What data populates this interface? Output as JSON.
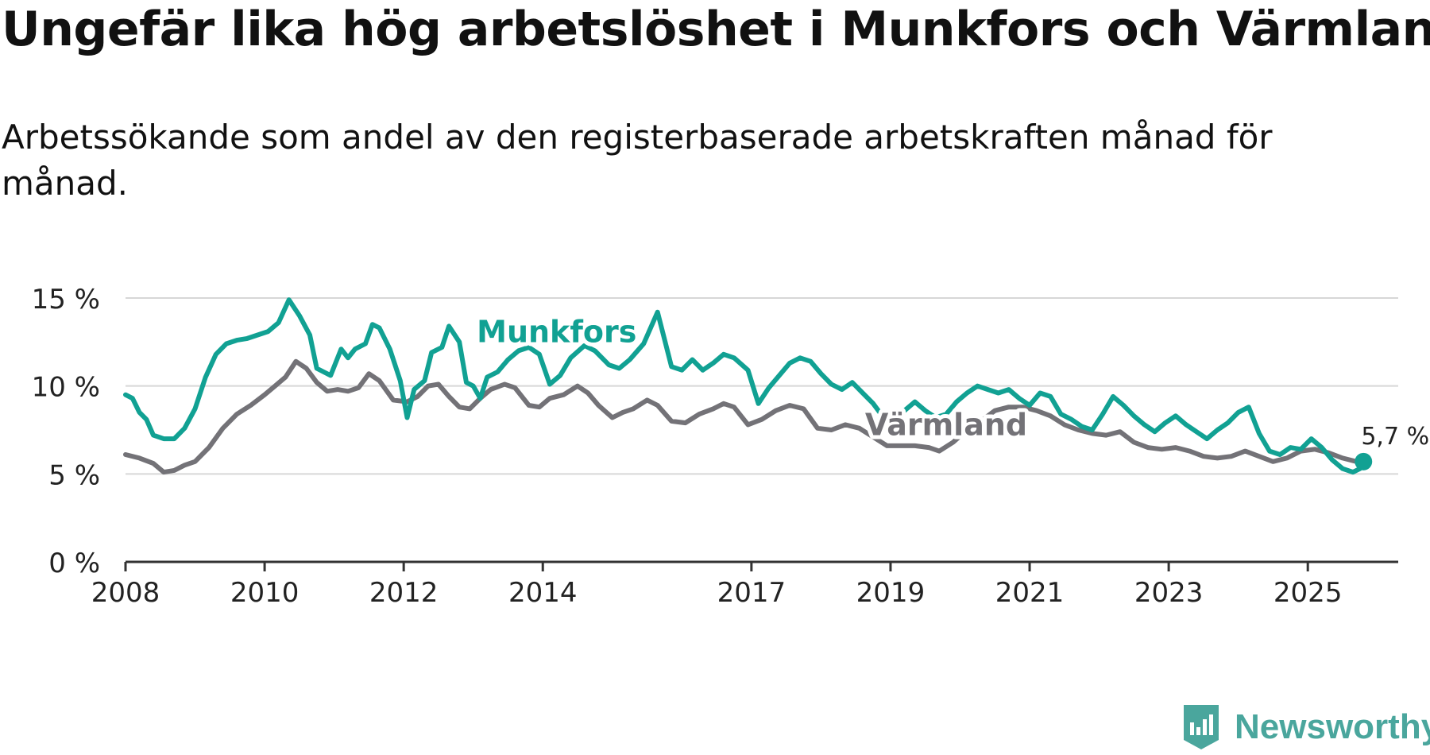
{
  "title": "Ungefär lika hög arbetslöshet i Munkfors och Värmland",
  "subtitle": "Arbetssökande som andel av den registerbaserade arbetskraften månad för månad.",
  "brand": {
    "name": "Newsworthy",
    "icon": "newsworthy-chart-badge-icon",
    "color": "#4aa69d"
  },
  "chart_data": {
    "type": "line",
    "title": "Ungefär lika hög arbetslöshet i Munkfors och Värmland",
    "xlabel": "",
    "ylabel": "",
    "xlim": [
      2008,
      2026.3
    ],
    "ylim": [
      0,
      15
    ],
    "yticks": [
      0,
      5,
      10,
      15
    ],
    "ytick_labels": [
      "0 %",
      "5 %",
      "10 %",
      "15 %"
    ],
    "xticks": [
      2008,
      2010,
      2012,
      2014,
      2017,
      2019,
      2021,
      2023,
      2025
    ],
    "grid": true,
    "end_label": "5,7 %",
    "series": [
      {
        "name": "Värmland",
        "color": "#737277",
        "points": [
          [
            2008.0,
            6.1
          ],
          [
            2008.2,
            5.9
          ],
          [
            2008.4,
            5.6
          ],
          [
            2008.55,
            5.1
          ],
          [
            2008.7,
            5.2
          ],
          [
            2008.85,
            5.5
          ],
          [
            2009.0,
            5.7
          ],
          [
            2009.2,
            6.5
          ],
          [
            2009.4,
            7.6
          ],
          [
            2009.6,
            8.4
          ],
          [
            2009.8,
            8.9
          ],
          [
            2010.0,
            9.5
          ],
          [
            2010.15,
            10.0
          ],
          [
            2010.3,
            10.5
          ],
          [
            2010.45,
            11.4
          ],
          [
            2010.6,
            11.0
          ],
          [
            2010.75,
            10.2
          ],
          [
            2010.9,
            9.7
          ],
          [
            2011.05,
            9.8
          ],
          [
            2011.2,
            9.7
          ],
          [
            2011.35,
            9.9
          ],
          [
            2011.5,
            10.7
          ],
          [
            2011.65,
            10.3
          ],
          [
            2011.85,
            9.2
          ],
          [
            2012.05,
            9.1
          ],
          [
            2012.2,
            9.4
          ],
          [
            2012.35,
            10.0
          ],
          [
            2012.5,
            10.1
          ],
          [
            2012.65,
            9.4
          ],
          [
            2012.8,
            8.8
          ],
          [
            2012.95,
            8.7
          ],
          [
            2013.1,
            9.3
          ],
          [
            2013.25,
            9.8
          ],
          [
            2013.45,
            10.1
          ],
          [
            2013.6,
            9.9
          ],
          [
            2013.8,
            8.9
          ],
          [
            2013.95,
            8.8
          ],
          [
            2014.1,
            9.3
          ],
          [
            2014.3,
            9.5
          ],
          [
            2014.5,
            10.0
          ],
          [
            2014.65,
            9.6
          ],
          [
            2014.8,
            8.9
          ],
          [
            2015.0,
            8.2
          ],
          [
            2015.15,
            8.5
          ],
          [
            2015.3,
            8.7
          ],
          [
            2015.5,
            9.2
          ],
          [
            2015.65,
            8.9
          ],
          [
            2015.85,
            8.0
          ],
          [
            2016.05,
            7.9
          ],
          [
            2016.25,
            8.4
          ],
          [
            2016.45,
            8.7
          ],
          [
            2016.6,
            9.0
          ],
          [
            2016.75,
            8.8
          ],
          [
            2016.95,
            7.8
          ],
          [
            2017.15,
            8.1
          ],
          [
            2017.35,
            8.6
          ],
          [
            2017.55,
            8.9
          ],
          [
            2017.75,
            8.7
          ],
          [
            2017.95,
            7.6
          ],
          [
            2018.15,
            7.5
          ],
          [
            2018.35,
            7.8
          ],
          [
            2018.55,
            7.6
          ],
          [
            2018.75,
            7.1
          ],
          [
            2018.95,
            6.6
          ],
          [
            2019.15,
            6.6
          ],
          [
            2019.35,
            6.6
          ],
          [
            2019.55,
            6.5
          ],
          [
            2019.7,
            6.3
          ],
          [
            2019.9,
            6.8
          ],
          [
            2020.1,
            7.5
          ],
          [
            2020.3,
            8.0
          ],
          [
            2020.5,
            8.6
          ],
          [
            2020.7,
            8.8
          ],
          [
            2020.9,
            8.8
          ],
          [
            2021.1,
            8.6
          ],
          [
            2021.3,
            8.3
          ],
          [
            2021.5,
            7.8
          ],
          [
            2021.7,
            7.5
          ],
          [
            2021.9,
            7.3
          ],
          [
            2022.1,
            7.2
          ],
          [
            2022.3,
            7.4
          ],
          [
            2022.5,
            6.8
          ],
          [
            2022.7,
            6.5
          ],
          [
            2022.9,
            6.4
          ],
          [
            2023.1,
            6.5
          ],
          [
            2023.3,
            6.3
          ],
          [
            2023.5,
            6.0
          ],
          [
            2023.7,
            5.9
          ],
          [
            2023.9,
            6.0
          ],
          [
            2024.1,
            6.3
          ],
          [
            2024.3,
            6.0
          ],
          [
            2024.5,
            5.7
          ],
          [
            2024.7,
            5.9
          ],
          [
            2024.9,
            6.3
          ],
          [
            2025.1,
            6.4
          ],
          [
            2025.3,
            6.2
          ],
          [
            2025.5,
            5.9
          ],
          [
            2025.7,
            5.7
          ],
          [
            2025.8,
            5.7
          ]
        ]
      },
      {
        "name": "Munkfors",
        "color": "#11a193",
        "points": [
          [
            2008.0,
            9.5
          ],
          [
            2008.1,
            9.3
          ],
          [
            2008.2,
            8.5
          ],
          [
            2008.3,
            8.1
          ],
          [
            2008.4,
            7.2
          ],
          [
            2008.55,
            7.0
          ],
          [
            2008.7,
            7.0
          ],
          [
            2008.85,
            7.6
          ],
          [
            2009.0,
            8.7
          ],
          [
            2009.15,
            10.5
          ],
          [
            2009.3,
            11.8
          ],
          [
            2009.45,
            12.4
          ],
          [
            2009.6,
            12.6
          ],
          [
            2009.75,
            12.7
          ],
          [
            2009.9,
            12.9
          ],
          [
            2010.05,
            13.1
          ],
          [
            2010.2,
            13.6
          ],
          [
            2010.35,
            14.9
          ],
          [
            2010.5,
            14.0
          ],
          [
            2010.65,
            12.9
          ],
          [
            2010.75,
            11.0
          ],
          [
            2010.85,
            10.8
          ],
          [
            2010.95,
            10.6
          ],
          [
            2011.1,
            12.1
          ],
          [
            2011.2,
            11.6
          ],
          [
            2011.3,
            12.1
          ],
          [
            2011.45,
            12.4
          ],
          [
            2011.55,
            13.5
          ],
          [
            2011.65,
            13.3
          ],
          [
            2011.8,
            12.1
          ],
          [
            2011.95,
            10.3
          ],
          [
            2012.05,
            8.2
          ],
          [
            2012.15,
            9.8
          ],
          [
            2012.3,
            10.3
          ],
          [
            2012.4,
            11.9
          ],
          [
            2012.55,
            12.2
          ],
          [
            2012.65,
            13.4
          ],
          [
            2012.8,
            12.5
          ],
          [
            2012.9,
            10.2
          ],
          [
            2013.0,
            10.0
          ],
          [
            2013.1,
            9.3
          ],
          [
            2013.2,
            10.5
          ],
          [
            2013.35,
            10.8
          ],
          [
            2013.5,
            11.5
          ],
          [
            2013.65,
            12.0
          ],
          [
            2013.8,
            12.2
          ],
          [
            2013.95,
            11.8
          ],
          [
            2014.1,
            10.1
          ],
          [
            2014.25,
            10.6
          ],
          [
            2014.4,
            11.6
          ],
          [
            2014.6,
            12.3
          ],
          [
            2014.75,
            12.0
          ],
          [
            2014.95,
            11.2
          ],
          [
            2015.1,
            11.0
          ],
          [
            2015.25,
            11.5
          ],
          [
            2015.45,
            12.4
          ],
          [
            2015.65,
            14.2
          ],
          [
            2015.85,
            11.1
          ],
          [
            2016.0,
            10.9
          ],
          [
            2016.15,
            11.5
          ],
          [
            2016.3,
            10.9
          ],
          [
            2016.45,
            11.3
          ],
          [
            2016.6,
            11.8
          ],
          [
            2016.75,
            11.6
          ],
          [
            2016.95,
            10.9
          ],
          [
            2017.1,
            9.0
          ],
          [
            2017.25,
            9.9
          ],
          [
            2017.4,
            10.6
          ],
          [
            2017.55,
            11.3
          ],
          [
            2017.7,
            11.6
          ],
          [
            2017.85,
            11.4
          ],
          [
            2018.0,
            10.7
          ],
          [
            2018.15,
            10.1
          ],
          [
            2018.3,
            9.8
          ],
          [
            2018.45,
            10.2
          ],
          [
            2018.6,
            9.6
          ],
          [
            2018.75,
            9.0
          ],
          [
            2018.9,
            8.2
          ],
          [
            2019.05,
            7.9
          ],
          [
            2019.2,
            8.6
          ],
          [
            2019.35,
            9.1
          ],
          [
            2019.5,
            8.6
          ],
          [
            2019.65,
            8.2
          ],
          [
            2019.8,
            8.4
          ],
          [
            2019.95,
            9.1
          ],
          [
            2020.1,
            9.6
          ],
          [
            2020.25,
            10.0
          ],
          [
            2020.4,
            9.8
          ],
          [
            2020.55,
            9.6
          ],
          [
            2020.7,
            9.8
          ],
          [
            2020.85,
            9.3
          ],
          [
            2021.0,
            8.9
          ],
          [
            2021.15,
            9.6
          ],
          [
            2021.3,
            9.4
          ],
          [
            2021.45,
            8.4
          ],
          [
            2021.6,
            8.1
          ],
          [
            2021.75,
            7.7
          ],
          [
            2021.9,
            7.5
          ],
          [
            2022.05,
            8.4
          ],
          [
            2022.2,
            9.4
          ],
          [
            2022.35,
            8.9
          ],
          [
            2022.5,
            8.3
          ],
          [
            2022.65,
            7.8
          ],
          [
            2022.8,
            7.4
          ],
          [
            2022.95,
            7.9
          ],
          [
            2023.1,
            8.3
          ],
          [
            2023.25,
            7.8
          ],
          [
            2023.4,
            7.4
          ],
          [
            2023.55,
            7.0
          ],
          [
            2023.7,
            7.5
          ],
          [
            2023.85,
            7.9
          ],
          [
            2024.0,
            8.5
          ],
          [
            2024.15,
            8.8
          ],
          [
            2024.3,
            7.3
          ],
          [
            2024.45,
            6.3
          ],
          [
            2024.6,
            6.1
          ],
          [
            2024.75,
            6.5
          ],
          [
            2024.9,
            6.4
          ],
          [
            2025.05,
            7.0
          ],
          [
            2025.2,
            6.5
          ],
          [
            2025.35,
            5.8
          ],
          [
            2025.5,
            5.3
          ],
          [
            2025.65,
            5.1
          ],
          [
            2025.75,
            5.3
          ],
          [
            2025.8,
            5.7
          ]
        ]
      }
    ],
    "annotations": [
      {
        "text": "Munkfors",
        "series": "Munkfors",
        "at": [
          2014.2,
          12.5
        ]
      },
      {
        "text": "Värmland",
        "series": "Värmland",
        "at": [
          2019.8,
          7.2
        ]
      }
    ]
  }
}
